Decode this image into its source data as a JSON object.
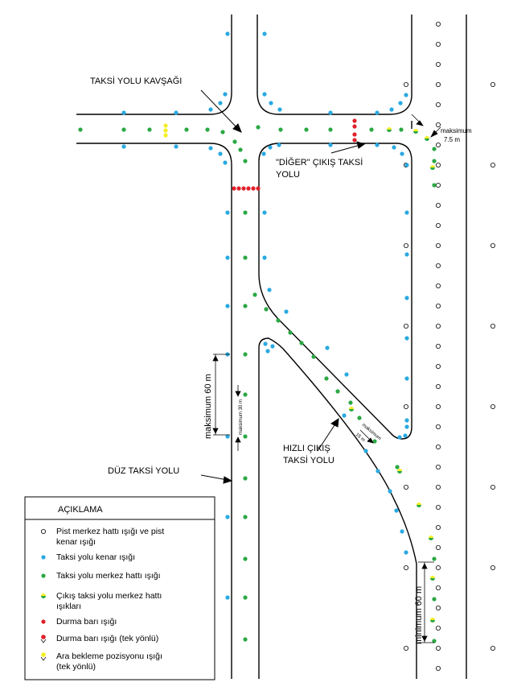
{
  "colors": {
    "edge_blue": "#29a9e1",
    "center_green": "#2aa844",
    "stop_red": "#e0202a",
    "hold_yellow": "#f5ee22",
    "line": "#000000"
  },
  "labels": {
    "junction": "TAKSİ YOLU KAVŞAĞI",
    "other_exit_1": "\"DİĞER\" ÇIKIŞ TAKSİ",
    "other_exit_2": "YOLU",
    "rapid_exit_1": "HIZLI ÇIKIŞ",
    "rapid_exit_2": "TAKSİ YOLU",
    "straight": "DÜZ TAKSİ YOLU",
    "max_60": "maksimum 60 m",
    "max_30": "maksimum 30 m",
    "max_15": "maksimum",
    "max_15_value": "15 m",
    "max_7_5": "maksimum",
    "max_7_5_value": "7.5 m",
    "min_60": "minimum 60 m"
  },
  "legend": {
    "title": "AÇIKLAMA",
    "items": [
      {
        "symbol": "open-circle-icon",
        "line1": "Pist merkez hattı ışığı ve pist",
        "line2": "kenar ışığı"
      },
      {
        "symbol": "blue-dot-icon",
        "line1": "Taksi yolu kenar ışığı",
        "line2": ""
      },
      {
        "symbol": "green-dot-icon",
        "line1": "Taksi yolu merkez hattı ışığı",
        "line2": ""
      },
      {
        "symbol": "green-yellow-dot-icon",
        "line1": "Çıkış taksi yolu merkez hattı",
        "line2": "ışıkları"
      },
      {
        "symbol": "red-dot-icon",
        "line1": "Durma barı ışığı",
        "line2": ""
      },
      {
        "symbol": "red-unidirectional-icon",
        "line1": "Durma barı ışığı (tek yönlü)",
        "line2": ""
      },
      {
        "symbol": "yellow-unidirectional-icon",
        "line1": "Ara bekleme pozisyonu ışığı",
        "line2": "(tek yönlü)"
      }
    ]
  }
}
